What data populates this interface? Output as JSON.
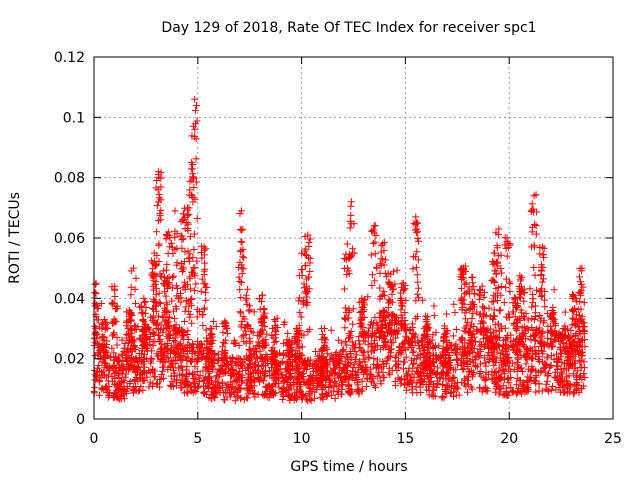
{
  "chart_data": {
    "type": "scatter",
    "title": "Day 129 of 2018, Rate Of TEC Index for receiver spc1",
    "xlabel": "GPS time / hours",
    "ylabel": "ROTI / TECUs",
    "xlim": [
      0,
      25
    ],
    "ylim": [
      0,
      0.12
    ],
    "x_ticks": [
      0,
      5,
      10,
      15,
      20,
      25
    ],
    "x_tick_labels": [
      "0",
      "5",
      "10",
      "15",
      "20",
      "25"
    ],
    "y_ticks": [
      0,
      0.02,
      0.04,
      0.06,
      0.08,
      0.1,
      0.12
    ],
    "y_tick_labels": [
      "0",
      "0.02",
      "0.04",
      "0.06",
      "0.08",
      "0.1",
      "0.12"
    ],
    "grid": true,
    "marker": "+",
    "color": "#ff0000",
    "baseline": [
      [
        0,
        0.018
      ],
      [
        1,
        0.014
      ],
      [
        2,
        0.016
      ],
      [
        2.5,
        0.02
      ],
      [
        3,
        0.024
      ],
      [
        4,
        0.02
      ],
      [
        5,
        0.017
      ],
      [
        6,
        0.014
      ],
      [
        7,
        0.013
      ],
      [
        8,
        0.017
      ],
      [
        9,
        0.014
      ],
      [
        10,
        0.013
      ],
      [
        11,
        0.013
      ],
      [
        12,
        0.015
      ],
      [
        13,
        0.019
      ],
      [
        14,
        0.024
      ],
      [
        15,
        0.02
      ],
      [
        16,
        0.017
      ],
      [
        17,
        0.015
      ],
      [
        18,
        0.019
      ],
      [
        19,
        0.02
      ],
      [
        20,
        0.016
      ],
      [
        21,
        0.02
      ],
      [
        22,
        0.019
      ],
      [
        23,
        0.018
      ],
      [
        23.6,
        0.02
      ]
    ],
    "peaks": [
      {
        "x": 0.1,
        "y": 0.045
      },
      {
        "x": 0.5,
        "y": 0.033
      },
      {
        "x": 1.0,
        "y": 0.044
      },
      {
        "x": 1.7,
        "y": 0.036
      },
      {
        "x": 1.9,
        "y": 0.05
      },
      {
        "x": 2.4,
        "y": 0.04
      },
      {
        "x": 2.9,
        "y": 0.055
      },
      {
        "x": 3.1,
        "y": 0.082
      },
      {
        "x": 3.4,
        "y": 0.047
      },
      {
        "x": 3.6,
        "y": 0.062
      },
      {
        "x": 3.9,
        "y": 0.069
      },
      {
        "x": 4.3,
        "y": 0.068
      },
      {
        "x": 4.5,
        "y": 0.07
      },
      {
        "x": 4.7,
        "y": 0.085
      },
      {
        "x": 4.85,
        "y": 0.106
      },
      {
        "x": 5.3,
        "y": 0.057
      },
      {
        "x": 5.6,
        "y": 0.03
      },
      {
        "x": 6.3,
        "y": 0.032
      },
      {
        "x": 7.1,
        "y": 0.069
      },
      {
        "x": 7.4,
        "y": 0.043
      },
      {
        "x": 8.1,
        "y": 0.041
      },
      {
        "x": 8.7,
        "y": 0.033
      },
      {
        "x": 9.4,
        "y": 0.026
      },
      {
        "x": 9.8,
        "y": 0.029
      },
      {
        "x": 10.0,
        "y": 0.055
      },
      {
        "x": 10.3,
        "y": 0.061
      },
      {
        "x": 11.1,
        "y": 0.03
      },
      {
        "x": 12.2,
        "y": 0.058
      },
      {
        "x": 12.4,
        "y": 0.072
      },
      {
        "x": 12.9,
        "y": 0.04
      },
      {
        "x": 13.5,
        "y": 0.064
      },
      {
        "x": 13.9,
        "y": 0.058
      },
      {
        "x": 14.3,
        "y": 0.048
      },
      {
        "x": 14.9,
        "y": 0.045
      },
      {
        "x": 15.5,
        "y": 0.067
      },
      {
        "x": 16.0,
        "y": 0.033
      },
      {
        "x": 16.9,
        "y": 0.03
      },
      {
        "x": 17.8,
        "y": 0.05
      },
      {
        "x": 18.2,
        "y": 0.047
      },
      {
        "x": 18.7,
        "y": 0.044
      },
      {
        "x": 19.3,
        "y": 0.055
      },
      {
        "x": 19.5,
        "y": 0.063
      },
      {
        "x": 19.9,
        "y": 0.06
      },
      {
        "x": 20.3,
        "y": 0.04
      },
      {
        "x": 20.6,
        "y": 0.047
      },
      {
        "x": 21.2,
        "y": 0.074
      },
      {
        "x": 21.6,
        "y": 0.057
      },
      {
        "x": 22.1,
        "y": 0.037
      },
      {
        "x": 22.6,
        "y": 0.03
      },
      {
        "x": 23.1,
        "y": 0.041
      },
      {
        "x": 23.5,
        "y": 0.05
      }
    ]
  }
}
